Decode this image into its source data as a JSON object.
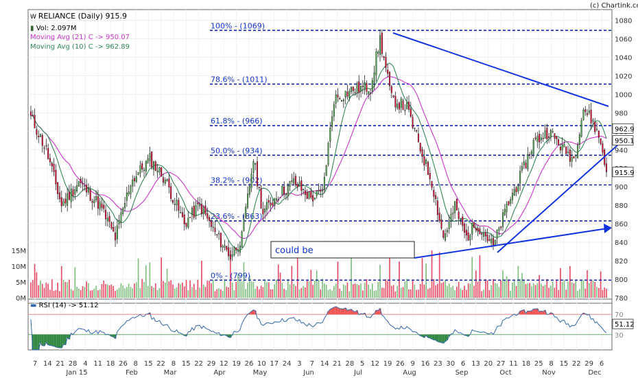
{
  "header": {
    "source": "(c) Chartink.com",
    "title": "RELIANCE (Daily) 915.9",
    "volume": "Vol: 2.097M",
    "ma21": "Moving Avg (21) C -> 950.07",
    "ma10": "Moving Avg (10) C -> 962.89",
    "rsi": "RSI (14) -> 51.12",
    "annotation": "could be"
  },
  "colors": {
    "up": "#55aa55",
    "down": "#dd1133",
    "ma21": "#cc33cc",
    "ma10": "#338855",
    "trend": "#1133dd",
    "rsi": "#3366aa",
    "rsi_fill_hi": "#ee5555",
    "rsi_fill_lo": "#338844"
  },
  "chart_data": {
    "type": "candlestick",
    "title": "RELIANCE (Daily) 915.9",
    "price_axis": {
      "ylim": [
        780,
        1090
      ],
      "ticks": [
        780,
        800,
        820,
        840,
        860,
        880,
        900,
        920,
        940,
        960,
        980,
        1000,
        1020,
        1040,
        1060,
        1080
      ]
    },
    "volume_axis": {
      "ticks": [
        "0M",
        "5M",
        "10M",
        "15M"
      ]
    },
    "rsi_axis": {
      "ylim": [
        0,
        100
      ],
      "ticks": [
        30,
        70
      ]
    },
    "last_values": {
      "close": "915.9",
      "ma10": "962.9",
      "ma21": "950.1",
      "rsi": "51.12"
    },
    "fibonacci": [
      {
        "label": "100% - (1069)",
        "value": 1069
      },
      {
        "label": "78.6% - (1011)",
        "value": 1011
      },
      {
        "label": "61.8% - (966)",
        "value": 966
      },
      {
        "label": "50.0% - (934)",
        "value": 934
      },
      {
        "label": "38.2% - (902)",
        "value": 902
      },
      {
        "label": "23.6% - (863)",
        "value": 863
      },
      {
        "label": "0% - (799)",
        "value": 799
      }
    ],
    "x_tick_days": [
      "7",
      "14",
      "21",
      "28",
      "4",
      "11",
      "18",
      "26",
      "8",
      "15",
      "22",
      "8",
      "15",
      "22",
      "29",
      "12",
      "19",
      "26",
      "10",
      "17",
      "24",
      "3",
      "7",
      "14",
      "21",
      "28",
      "5",
      "12",
      "19",
      "26",
      "9",
      "16",
      "23",
      "30",
      "6",
      "13",
      "20",
      "27",
      "11",
      "18",
      "25",
      "8",
      "15",
      "22",
      "29",
      "6"
    ],
    "x_months": [
      "Jan 15",
      "Feb",
      "Mar",
      "Apr",
      "May",
      "Jun",
      "Jul",
      "Aug",
      "Sep",
      "Oct",
      "Nov",
      "Dec"
    ],
    "anchors": [
      {
        "d": 0,
        "p": 975
      },
      {
        "d": 8,
        "p": 940
      },
      {
        "d": 16,
        "p": 880
      },
      {
        "d": 25,
        "p": 905
      },
      {
        "d": 36,
        "p": 880
      },
      {
        "d": 44,
        "p": 845
      },
      {
        "d": 52,
        "p": 905
      },
      {
        "d": 62,
        "p": 930
      },
      {
        "d": 70,
        "p": 908
      },
      {
        "d": 80,
        "p": 860
      },
      {
        "d": 88,
        "p": 880
      },
      {
        "d": 96,
        "p": 850
      },
      {
        "d": 104,
        "p": 825
      },
      {
        "d": 110,
        "p": 845
      },
      {
        "d": 116,
        "p": 930
      },
      {
        "d": 121,
        "p": 872
      },
      {
        "d": 128,
        "p": 890
      },
      {
        "d": 137,
        "p": 905
      },
      {
        "d": 146,
        "p": 888
      },
      {
        "d": 152,
        "p": 893
      },
      {
        "d": 158,
        "p": 995
      },
      {
        "d": 168,
        "p": 1005
      },
      {
        "d": 177,
        "p": 1008
      },
      {
        "d": 182,
        "p": 1060
      },
      {
        "d": 188,
        "p": 995
      },
      {
        "d": 196,
        "p": 985
      },
      {
        "d": 204,
        "p": 935
      },
      {
        "d": 209,
        "p": 905
      },
      {
        "d": 215,
        "p": 845
      },
      {
        "d": 221,
        "p": 878
      },
      {
        "d": 227,
        "p": 845
      },
      {
        "d": 232,
        "p": 860
      },
      {
        "d": 237,
        "p": 848
      },
      {
        "d": 241,
        "p": 835
      },
      {
        "d": 248,
        "p": 878
      },
      {
        "d": 255,
        "p": 910
      },
      {
        "d": 262,
        "p": 948
      },
      {
        "d": 270,
        "p": 960
      },
      {
        "d": 277,
        "p": 942
      },
      {
        "d": 283,
        "p": 930
      },
      {
        "d": 288,
        "p": 985
      },
      {
        "d": 293,
        "p": 970
      },
      {
        "d": 297,
        "p": 948
      },
      {
        "d": 300,
        "p": 916
      }
    ]
  }
}
